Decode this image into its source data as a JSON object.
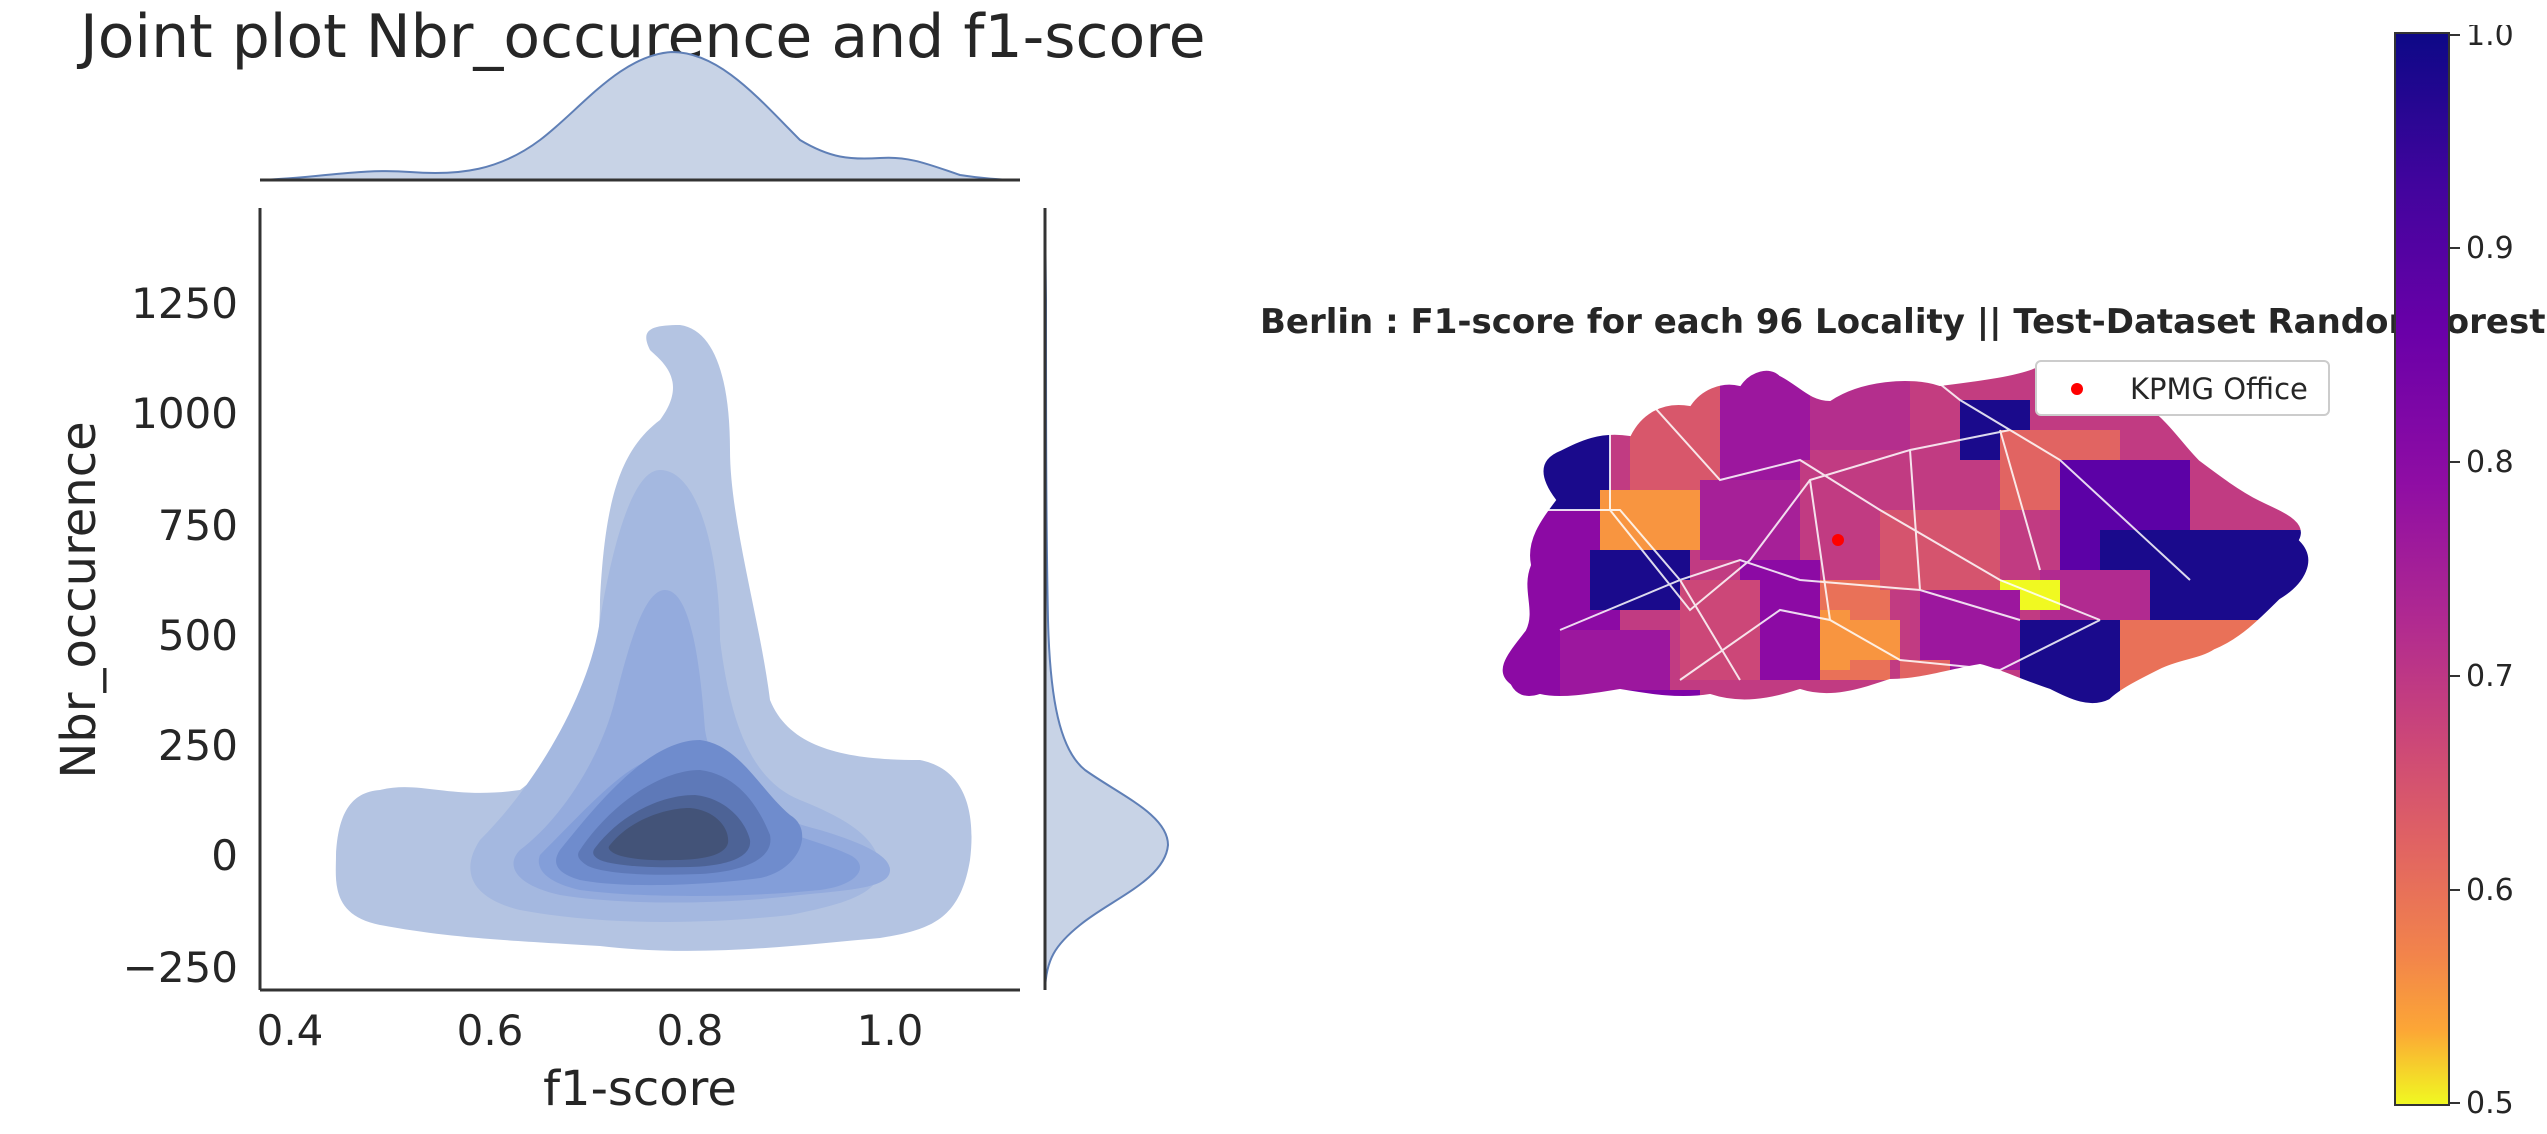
{
  "joint_plot": {
    "title": "Joint plot Nbr_occurence and f1-score",
    "xlabel": "f1-score",
    "ylabel": "Nbr_occurence"
  },
  "map_plot": {
    "title": "Berlin : F1-score for each 96 Locality || Test-Dataset RandomForest",
    "legend_label": "KPMG Office",
    "marker_color": "#ff0000",
    "colormap": "plasma",
    "colorbar_ticks": [
      "1.0",
      "0.9",
      "0.8",
      "0.7",
      "0.6",
      "0.5"
    ]
  },
  "chart_data": [
    {
      "type": "kde-joint",
      "title": "Joint plot Nbr_occurence and f1-score",
      "xlabel": "f1-score",
      "ylabel": "Nbr_occurence",
      "xlim": [
        0.37,
        1.13
      ],
      "ylim": [
        -300,
        1480
      ],
      "x_ticks": [
        "0.4",
        "0.6",
        "0.8",
        "1.0"
      ],
      "y_ticks": [
        "−250",
        "0",
        "250",
        "500",
        "750",
        "1000",
        "1250"
      ],
      "x_tick_values": [
        0.4,
        0.6,
        0.8,
        1.0
      ],
      "y_tick_values": [
        -250,
        0,
        250,
        500,
        750,
        1000,
        1250
      ],
      "density_peak": {
        "x": 0.76,
        "y": 60
      },
      "fill_color": "#4c72b0"
    },
    {
      "type": "choropleth",
      "title": "Berlin : F1-score for each 96 Locality || Test-Dataset RandomForest",
      "regions": 96,
      "legend": [
        "KPMG Office"
      ],
      "colorbar_range": [
        0.5,
        1.0
      ],
      "colorbar_ticks": [
        1.0,
        0.9,
        0.8,
        0.7,
        0.6,
        0.5
      ]
    }
  ]
}
